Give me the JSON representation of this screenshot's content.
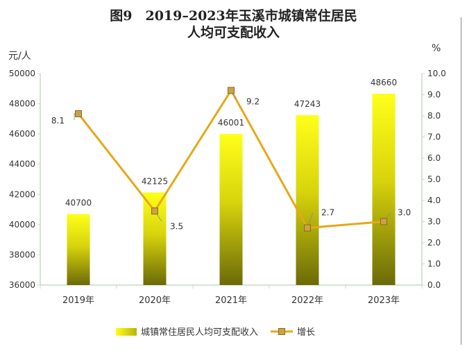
{
  "chart_data": {
    "type": "bar",
    "title_line1": "图9　2019–2023年玉溪市城镇常住居民",
    "title_line2": "人均可支配收入",
    "ylabel_left": "元/人",
    "ylabel_right": "%",
    "categories": [
      "2019年",
      "2020年",
      "2021年",
      "2022年",
      "2023年"
    ],
    "series": [
      {
        "name": "城镇常住居民人均可支配收入",
        "type": "bar",
        "axis": "left",
        "values": [
          40700,
          42125,
          46001,
          47243,
          48660
        ]
      },
      {
        "name": "增长",
        "type": "line",
        "axis": "right",
        "values": [
          8.1,
          3.5,
          9.2,
          2.7,
          3.0
        ]
      }
    ],
    "bar_labels": [
      "40700",
      "42125",
      "46001",
      "47243",
      "48660"
    ],
    "line_labels": [
      "8.1",
      "3.5",
      "9.2",
      "2.7",
      "3.0"
    ],
    "ylim_left": [
      36000,
      50000
    ],
    "yticks_left": [
      "36000",
      "38000",
      "40000",
      "42000",
      "44000",
      "46000",
      "48000",
      "50000"
    ],
    "ylim_right": [
      0,
      10
    ],
    "yticks_right": [
      "0.0",
      "1.0",
      "2.0",
      "3.0",
      "4.0",
      "5.0",
      "6.0",
      "7.0",
      "8.0",
      "9.0",
      "10.0"
    ],
    "grid": false,
    "legend_position": "bottom",
    "colors": {
      "bar_top": "#ffff1a",
      "bar_bottom": "#6b6a08",
      "line": "#e6a817",
      "marker_fill": "#c9a24a",
      "marker_edge": "#8a6a1a",
      "axis": "#c8d8c8",
      "text": "#333333"
    }
  }
}
